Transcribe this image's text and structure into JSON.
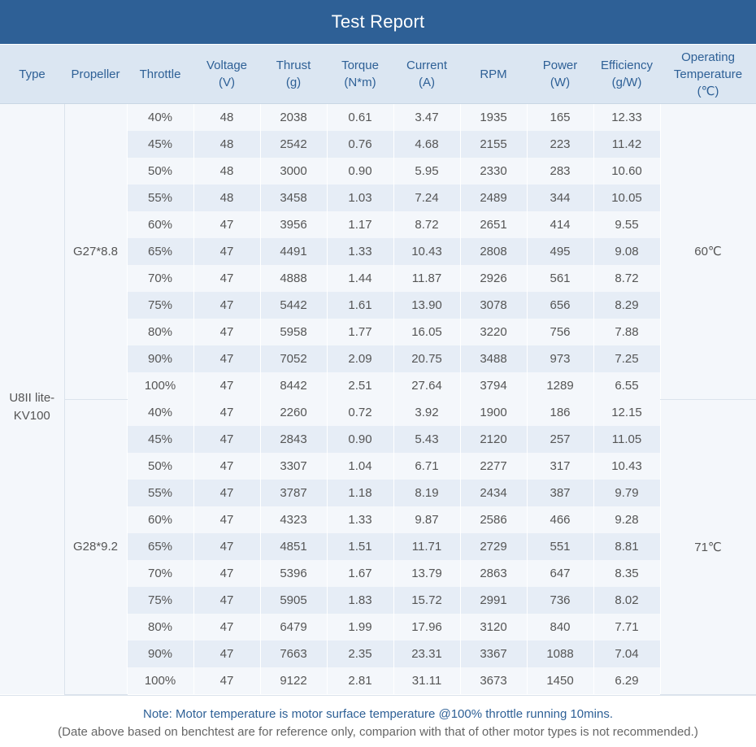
{
  "title": "Test Report",
  "headers": [
    [
      "Type"
    ],
    [
      "Propeller"
    ],
    [
      "Throttle"
    ],
    [
      "Voltage",
      "(V)"
    ],
    [
      "Thrust",
      "(g)"
    ],
    [
      "Torque",
      "(N*m)"
    ],
    [
      "Current",
      "(A)"
    ],
    [
      "RPM"
    ],
    [
      "Power",
      "(W)"
    ],
    [
      "Efficiency",
      "(g/W)"
    ],
    [
      "Operating",
      "Temperature",
      "(℃)"
    ]
  ],
  "type_label": [
    "U8II lite-",
    "KV100"
  ],
  "groups": [
    {
      "propeller": "G27*8.8",
      "temperature": "60℃",
      "rows": [
        [
          "40%",
          "48",
          "2038",
          "0.61",
          "3.47",
          "1935",
          "165",
          "12.33"
        ],
        [
          "45%",
          "48",
          "2542",
          "0.76",
          "4.68",
          "2155",
          "223",
          "11.42"
        ],
        [
          "50%",
          "48",
          "3000",
          "0.90",
          "5.95",
          "2330",
          "283",
          "10.60"
        ],
        [
          "55%",
          "48",
          "3458",
          "1.03",
          "7.24",
          "2489",
          "344",
          "10.05"
        ],
        [
          "60%",
          "47",
          "3956",
          "1.17",
          "8.72",
          "2651",
          "414",
          "9.55"
        ],
        [
          "65%",
          "47",
          "4491",
          "1.33",
          "10.43",
          "2808",
          "495",
          "9.08"
        ],
        [
          "70%",
          "47",
          "4888",
          "1.44",
          "11.87",
          "2926",
          "561",
          "8.72"
        ],
        [
          "75%",
          "47",
          "5442",
          "1.61",
          "13.90",
          "3078",
          "656",
          "8.29"
        ],
        [
          "80%",
          "47",
          "5958",
          "1.77",
          "16.05",
          "3220",
          "756",
          "7.88"
        ],
        [
          "90%",
          "47",
          "7052",
          "2.09",
          "20.75",
          "3488",
          "973",
          "7.25"
        ],
        [
          "100%",
          "47",
          "8442",
          "2.51",
          "27.64",
          "3794",
          "1289",
          "6.55"
        ]
      ]
    },
    {
      "propeller": "G28*9.2",
      "temperature": "71℃",
      "rows": [
        [
          "40%",
          "47",
          "2260",
          "0.72",
          "3.92",
          "1900",
          "186",
          "12.15"
        ],
        [
          "45%",
          "47",
          "2843",
          "0.90",
          "5.43",
          "2120",
          "257",
          "11.05"
        ],
        [
          "50%",
          "47",
          "3307",
          "1.04",
          "6.71",
          "2277",
          "317",
          "10.43"
        ],
        [
          "55%",
          "47",
          "3787",
          "1.18",
          "8.19",
          "2434",
          "387",
          "9.79"
        ],
        [
          "60%",
          "47",
          "4323",
          "1.33",
          "9.87",
          "2586",
          "466",
          "9.28"
        ],
        [
          "65%",
          "47",
          "4851",
          "1.51",
          "11.71",
          "2729",
          "551",
          "8.81"
        ],
        [
          "70%",
          "47",
          "5396",
          "1.67",
          "13.79",
          "2863",
          "647",
          "8.35"
        ],
        [
          "75%",
          "47",
          "5905",
          "1.83",
          "15.72",
          "2991",
          "736",
          "8.02"
        ],
        [
          "80%",
          "47",
          "6479",
          "1.99",
          "17.96",
          "3120",
          "840",
          "7.71"
        ],
        [
          "90%",
          "47",
          "7663",
          "2.35",
          "23.31",
          "3367",
          "1088",
          "7.04"
        ],
        [
          "100%",
          "47",
          "9122",
          "2.81",
          "31.11",
          "3673",
          "1450",
          "6.29"
        ]
      ]
    }
  ],
  "note": {
    "main": "Note: Motor temperature is motor surface temperature @100% throttle running 10mins.",
    "sub": "(Date above based on benchtest are for reference only, comparion with that of other motor types is not recommended.)"
  },
  "colors": {
    "title_bg": "#2e6096",
    "header_bg": "#dbe6f2",
    "accent_text": "#2e6096",
    "row_light": "#f4f7fb",
    "row_dark": "#e6edf6"
  }
}
